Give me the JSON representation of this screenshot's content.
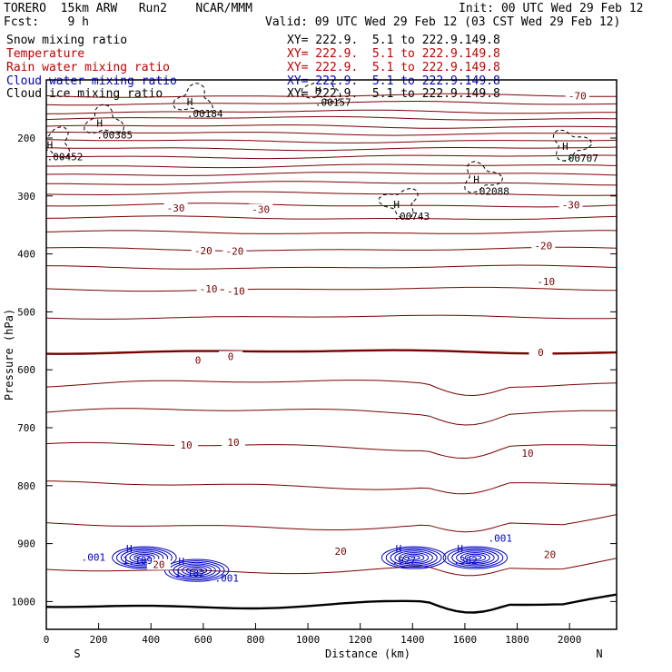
{
  "header": {
    "model": "TORERO  15km ARW   Run2    NCAR/MMM",
    "init": "Init: 00 UTC Wed 29 Feb 12",
    "fcst": "Fcst:    9 h",
    "valid": "Valid: 09 UTC Wed 29 Feb 12 (03 CST Wed 29 Feb 12)"
  },
  "legend": [
    {
      "label": "Snow mixing ratio",
      "color": "#000000",
      "xy": "XY= 222.9.  5.1 to 222.9.149.8"
    },
    {
      "label": "Temperature",
      "color": "#c00000",
      "xy": "XY= 222.9.  5.1 to 222.9.149.8"
    },
    {
      "label": "Rain water mixing ratio",
      "color": "#c00000",
      "xy": "XY= 222.9.  5.1 to 222.9.149.8"
    },
    {
      "label": "Cloud water mixing ratio",
      "color": "#0000c8",
      "xy": "XY= 222.9.  5.1 to 222.9.149.8"
    },
    {
      "label": "Cloud ice mixing ratio",
      "color": "#000000",
      "xy": "XY= 222.9.  5.1 to 222.9.149.8"
    }
  ],
  "colors": {
    "temperature": "#7a0000",
    "cloud_water": "#0000c8",
    "ice": "#000000",
    "axis": "#000000"
  },
  "chart_data": {
    "type": "contour-cross-section",
    "xlabel": "Distance (km)",
    "ylabel": "Pressure (hPa)",
    "xlim": [
      0,
      2180
    ],
    "ylim": [
      1045,
      100
    ],
    "xticks": [
      0,
      200,
      400,
      600,
      800,
      1000,
      1200,
      1400,
      1600,
      1800,
      2000
    ],
    "yticks": [
      200,
      300,
      400,
      500,
      600,
      700,
      800,
      900,
      1000
    ],
    "x_end_labels": {
      "left": "S",
      "right": "N"
    },
    "temperature_levels_hpa": [
      127,
      140,
      155,
      166,
      180,
      192,
      205,
      218,
      232,
      248,
      262,
      278,
      296,
      316,
      338,
      363,
      392,
      423,
      461,
      509,
      569,
      623,
      672,
      732,
      799,
      869,
      945,
      1006
    ],
    "temperature_labels": [
      {
        "text": "-70",
        "x": 2030,
        "p": 127
      },
      {
        "text": "-30",
        "x": 495,
        "p": 321
      },
      {
        "text": "-30",
        "x": 820,
        "p": 323
      },
      {
        "text": "-30",
        "x": 2005,
        "p": 315
      },
      {
        "text": "-20",
        "x": 600,
        "p": 394
      },
      {
        "text": "-20",
        "x": 720,
        "p": 395
      },
      {
        "text": "-20",
        "x": 1900,
        "p": 386
      },
      {
        "text": "-10",
        "x": 620,
        "p": 460
      },
      {
        "text": "-10",
        "x": 725,
        "p": 464
      },
      {
        "text": "-10",
        "x": 1910,
        "p": 448
      },
      {
        "text": "0",
        "x": 580,
        "p": 583
      },
      {
        "text": "0",
        "x": 705,
        "p": 577
      },
      {
        "text": "0",
        "x": 1890,
        "p": 570
      },
      {
        "text": "10",
        "x": 535,
        "p": 730
      },
      {
        "text": "10",
        "x": 715,
        "p": 725
      },
      {
        "text": "10",
        "x": 1840,
        "p": 744
      },
      {
        "text": "20",
        "x": 1125,
        "p": 913
      },
      {
        "text": "20",
        "x": 1925,
        "p": 919
      },
      {
        "text": "20",
        "x": 430,
        "p": 936
      }
    ],
    "ice_maxima": [
      {
        "text": ".00452",
        "x": 30,
        "p": 224
      },
      {
        "text": ".00385",
        "x": 220,
        "p": 187
      },
      {
        "text": ".00184",
        "x": 565,
        "p": 150
      },
      {
        "text": ".00157",
        "x": 1055,
        "p": 130
      },
      {
        "text": ".00743",
        "x": 1355,
        "p": 327
      },
      {
        "text": ".02088",
        "x": 1660,
        "p": 284
      },
      {
        "text": ".00707",
        "x": 2000,
        "p": 227
      }
    ],
    "cloud_water_maxima": [
      {
        "text": "1.109",
        "x": 340,
        "p": 918
      },
      {
        "text": "1.182",
        "x": 540,
        "p": 940
      },
      {
        "text": ".927",
        "x": 1370,
        "p": 918
      },
      {
        "text": ".362",
        "x": 1605,
        "p": 918
      }
    ],
    "cloud_water_small_labels": [
      {
        "text": ".001",
        "x": 180,
        "p": 930
      },
      {
        "text": ".001",
        "x": 690,
        "p": 966
      },
      {
        "text": ".001",
        "x": 1735,
        "p": 897
      }
    ]
  }
}
